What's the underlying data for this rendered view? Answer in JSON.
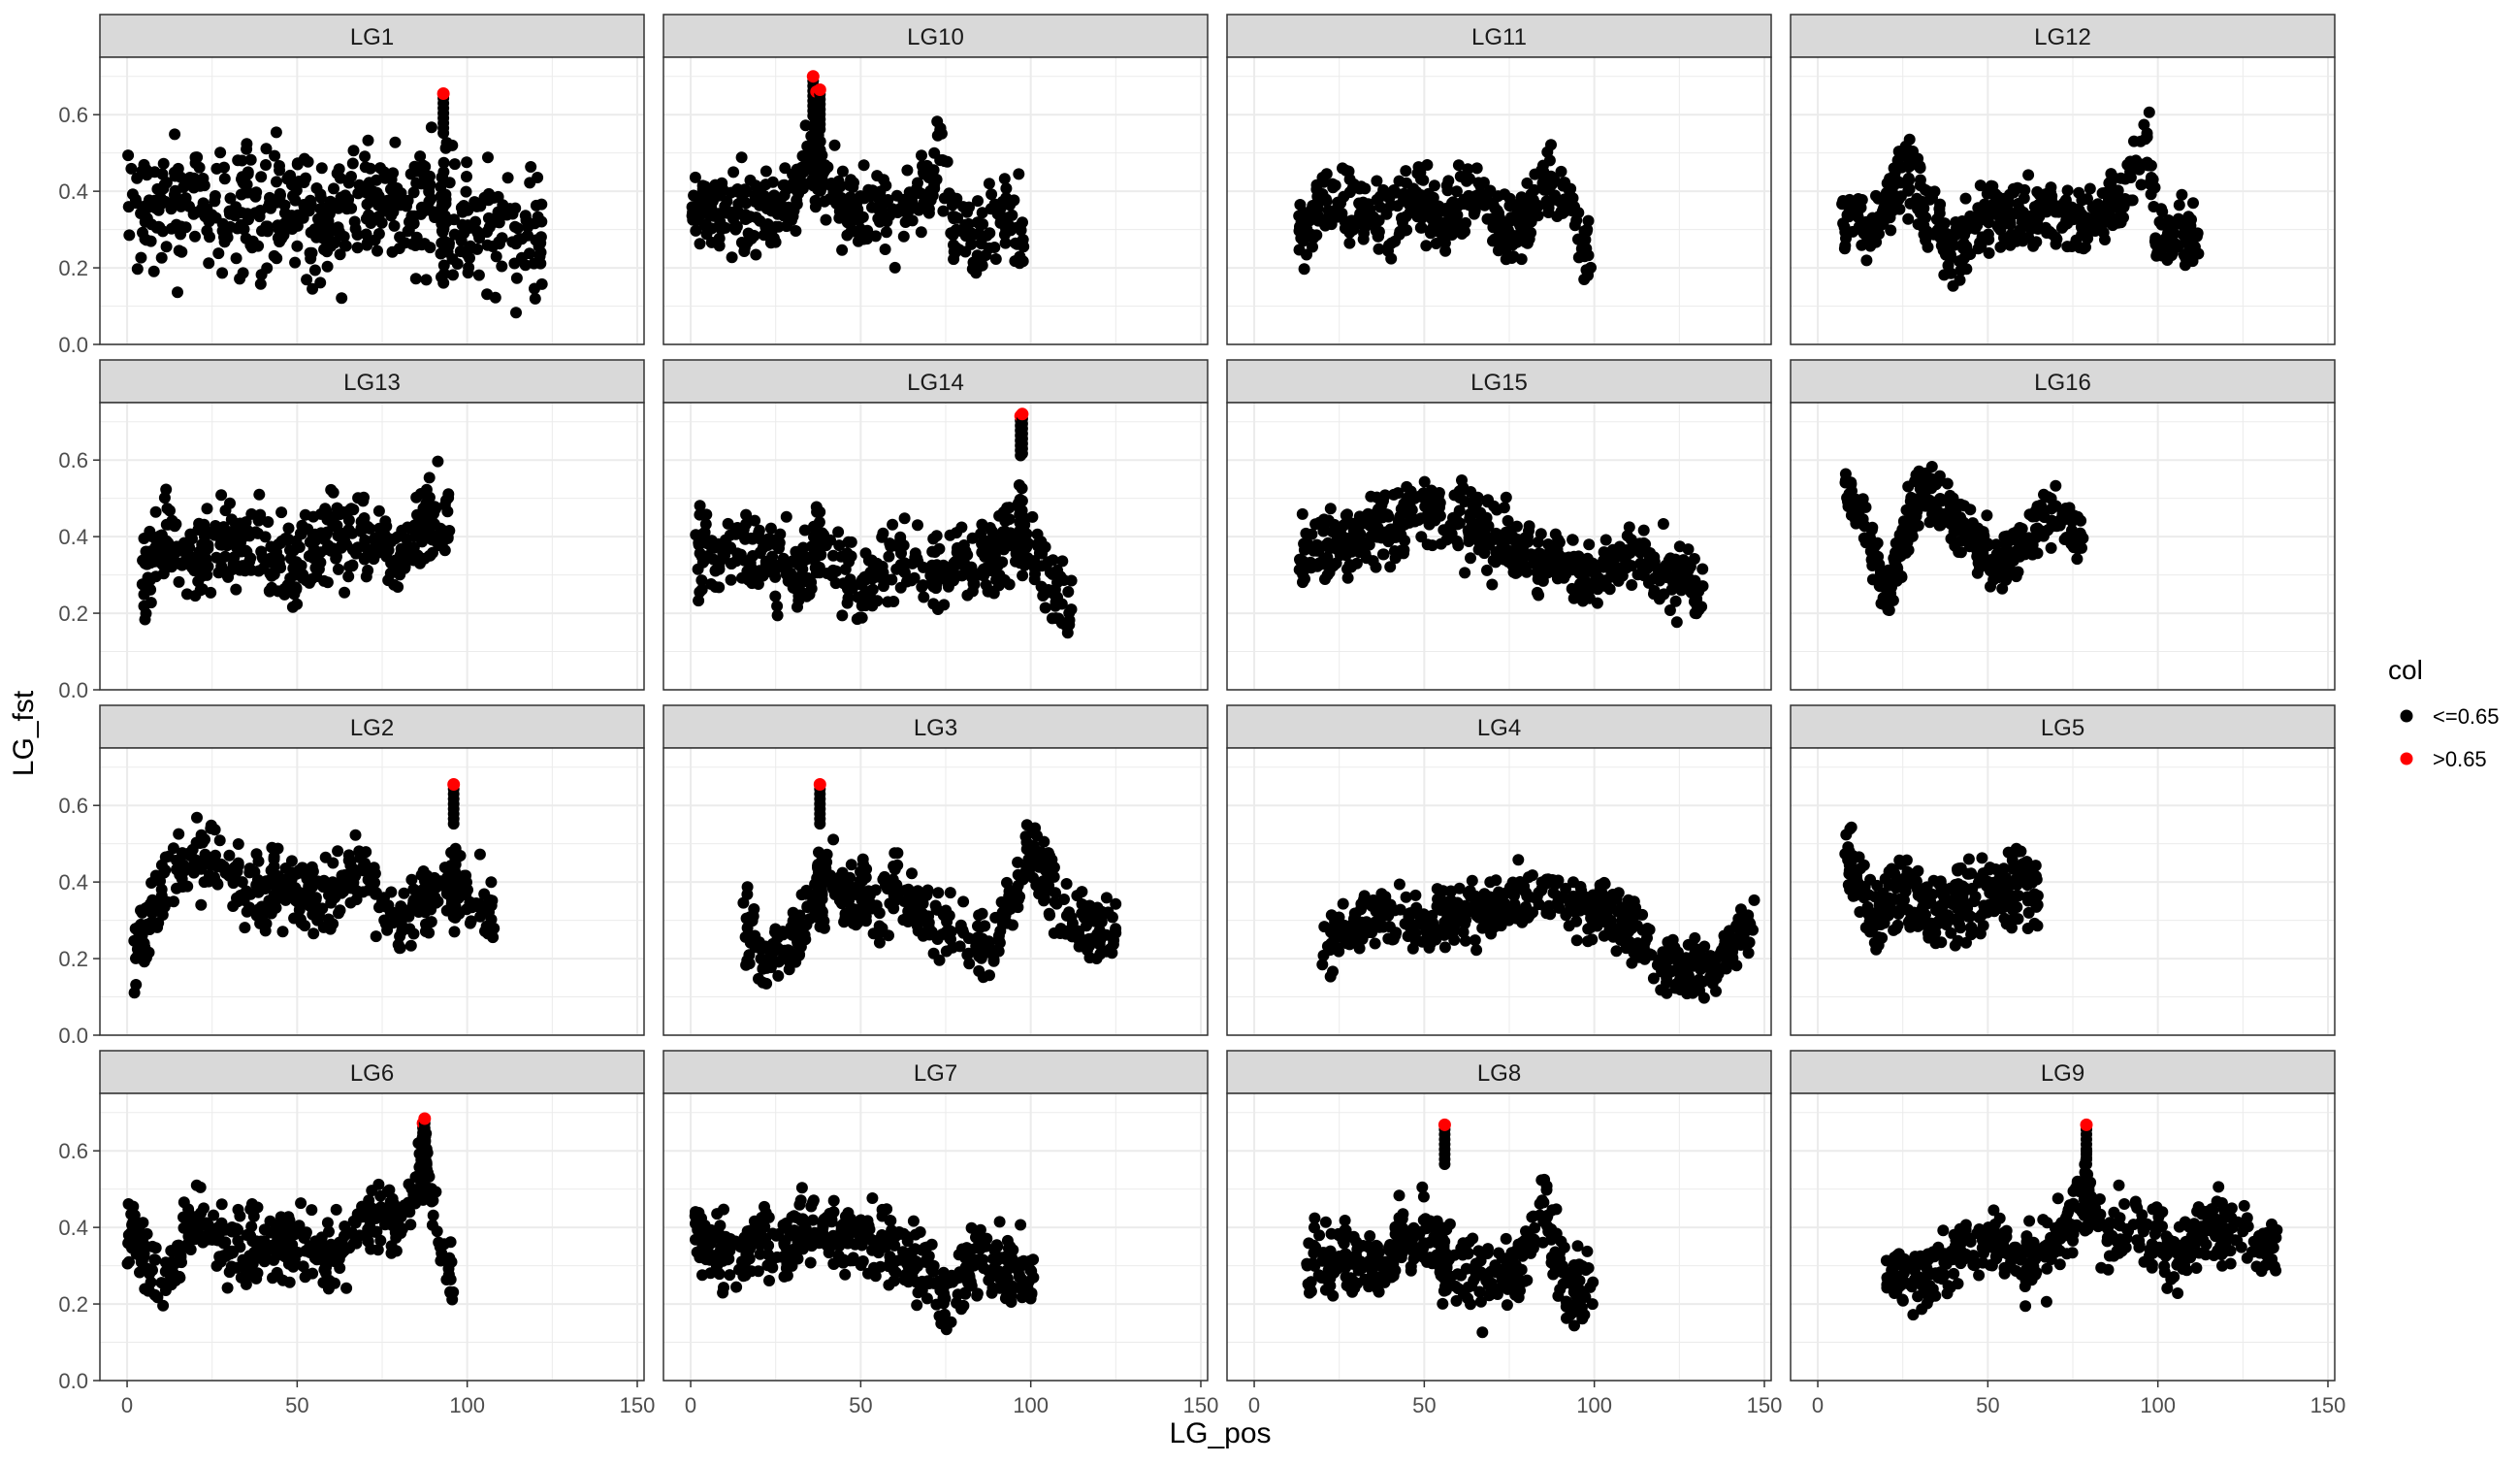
{
  "chart_data": {
    "type": "scatter",
    "xlabel": "LG_pos",
    "ylabel": "LG_fst",
    "xlim": [
      -8,
      152
    ],
    "ylim": [
      0.0,
      0.75
    ],
    "x_ticks": [
      0,
      50,
      100,
      150
    ],
    "y_ticks": [
      0.0,
      0.2,
      0.4,
      0.6
    ],
    "y_tick_labels": [
      "0.0",
      "0.2",
      "0.4",
      "0.6"
    ],
    "grid": true,
    "facet": "wrap 4x4, shared axes",
    "legend": {
      "title": "col",
      "placement": "right",
      "entries": [
        {
          "label": "<=0.65",
          "color": "#000000"
        },
        {
          "label": ">0.65",
          "color": "#ff0000"
        }
      ]
    },
    "panels": [
      {
        "name": "LG1",
        "x_range": [
          0,
          122
        ],
        "profile": [
          [
            0,
            0.4
          ],
          [
            10,
            0.37
          ],
          [
            20,
            0.36
          ],
          [
            30,
            0.34
          ],
          [
            40,
            0.36
          ],
          [
            50,
            0.35
          ],
          [
            60,
            0.32
          ],
          [
            70,
            0.36
          ],
          [
            80,
            0.34
          ],
          [
            90,
            0.36
          ],
          [
            100,
            0.33
          ],
          [
            110,
            0.3
          ],
          [
            122,
            0.28
          ]
        ],
        "spread": 0.11,
        "hi": [
          [
            93,
            0.655
          ]
        ]
      },
      {
        "name": "LG10",
        "x_range": [
          0,
          98
        ],
        "profile": [
          [
            0,
            0.38
          ],
          [
            10,
            0.33
          ],
          [
            20,
            0.36
          ],
          [
            30,
            0.37
          ],
          [
            36,
            0.5
          ],
          [
            40,
            0.42
          ],
          [
            50,
            0.33
          ],
          [
            60,
            0.36
          ],
          [
            70,
            0.4
          ],
          [
            73,
            0.5
          ],
          [
            80,
            0.27
          ],
          [
            90,
            0.33
          ],
          [
            98,
            0.3
          ]
        ],
        "spread": 0.07,
        "hi": [
          [
            36,
            0.7
          ],
          [
            37,
            0.66
          ],
          [
            38,
            0.665
          ]
        ]
      },
      {
        "name": "LG11",
        "x_range": [
          13,
          99
        ],
        "profile": [
          [
            13,
            0.3
          ],
          [
            20,
            0.38
          ],
          [
            30,
            0.36
          ],
          [
            40,
            0.3
          ],
          [
            47,
            0.4
          ],
          [
            55,
            0.32
          ],
          [
            65,
            0.4
          ],
          [
            75,
            0.28
          ],
          [
            85,
            0.42
          ],
          [
            92,
            0.38
          ],
          [
            99,
            0.2
          ]
        ],
        "spread": 0.06,
        "hi": []
      },
      {
        "name": "LG12",
        "x_range": [
          7,
          112
        ],
        "profile": [
          [
            7,
            0.34
          ],
          [
            15,
            0.3
          ],
          [
            20,
            0.35
          ],
          [
            25,
            0.48
          ],
          [
            30,
            0.38
          ],
          [
            40,
            0.23
          ],
          [
            50,
            0.34
          ],
          [
            60,
            0.33
          ],
          [
            70,
            0.34
          ],
          [
            80,
            0.32
          ],
          [
            90,
            0.4
          ],
          [
            97,
            0.52
          ],
          [
            100,
            0.28
          ],
          [
            112,
            0.3
          ]
        ],
        "spread": 0.06,
        "hi": []
      },
      {
        "name": "LG13",
        "x_range": [
          4,
          95
        ],
        "profile": [
          [
            4,
            0.28
          ],
          [
            10,
            0.4
          ],
          [
            20,
            0.33
          ],
          [
            30,
            0.4
          ],
          [
            40,
            0.36
          ],
          [
            50,
            0.32
          ],
          [
            60,
            0.4
          ],
          [
            70,
            0.4
          ],
          [
            80,
            0.33
          ],
          [
            88,
            0.44
          ],
          [
            95,
            0.45
          ]
        ],
        "spread": 0.07,
        "hi": []
      },
      {
        "name": "LG14",
        "x_range": [
          1,
          112
        ],
        "profile": [
          [
            1,
            0.34
          ],
          [
            10,
            0.38
          ],
          [
            20,
            0.36
          ],
          [
            30,
            0.3
          ],
          [
            40,
            0.36
          ],
          [
            50,
            0.26
          ],
          [
            60,
            0.34
          ],
          [
            70,
            0.32
          ],
          [
            80,
            0.33
          ],
          [
            90,
            0.35
          ],
          [
            97,
            0.42
          ],
          [
            105,
            0.3
          ],
          [
            112,
            0.2
          ]
        ],
        "spread": 0.07,
        "hi": [
          [
            97,
            0.715
          ],
          [
            97.5,
            0.72
          ]
        ]
      },
      {
        "name": "LG15",
        "x_range": [
          13,
          132
        ],
        "profile": [
          [
            13,
            0.35
          ],
          [
            25,
            0.38
          ],
          [
            35,
            0.42
          ],
          [
            50,
            0.47
          ],
          [
            60,
            0.46
          ],
          [
            70,
            0.4
          ],
          [
            80,
            0.36
          ],
          [
            90,
            0.33
          ],
          [
            100,
            0.3
          ],
          [
            110,
            0.35
          ],
          [
            120,
            0.3
          ],
          [
            132,
            0.25
          ]
        ],
        "spread": 0.06,
        "hi": []
      },
      {
        "name": "LG16",
        "x_range": [
          8,
          78
        ],
        "profile": [
          [
            8,
            0.52
          ],
          [
            15,
            0.4
          ],
          [
            20,
            0.24
          ],
          [
            25,
            0.38
          ],
          [
            30,
            0.52
          ],
          [
            40,
            0.45
          ],
          [
            50,
            0.35
          ],
          [
            55,
            0.33
          ],
          [
            60,
            0.4
          ],
          [
            70,
            0.48
          ],
          [
            78,
            0.4
          ]
        ],
        "spread": 0.05,
        "hi": []
      },
      {
        "name": "LG2",
        "x_range": [
          2,
          108
        ],
        "profile": [
          [
            2,
            0.2
          ],
          [
            10,
            0.38
          ],
          [
            20,
            0.47
          ],
          [
            30,
            0.42
          ],
          [
            40,
            0.36
          ],
          [
            50,
            0.38
          ],
          [
            60,
            0.36
          ],
          [
            70,
            0.44
          ],
          [
            78,
            0.3
          ],
          [
            85,
            0.33
          ],
          [
            95,
            0.4
          ],
          [
            100,
            0.38
          ],
          [
            108,
            0.3
          ]
        ],
        "spread": 0.06,
        "hi": [
          [
            96,
            0.655
          ]
        ]
      },
      {
        "name": "LG3",
        "x_range": [
          15,
          125
        ],
        "profile": [
          [
            15,
            0.3
          ],
          [
            20,
            0.22
          ],
          [
            30,
            0.24
          ],
          [
            35,
            0.35
          ],
          [
            40,
            0.4
          ],
          [
            50,
            0.35
          ],
          [
            55,
            0.3
          ],
          [
            60,
            0.4
          ],
          [
            70,
            0.3
          ],
          [
            80,
            0.26
          ],
          [
            90,
            0.24
          ],
          [
            100,
            0.5
          ],
          [
            110,
            0.3
          ],
          [
            125,
            0.27
          ]
        ],
        "spread": 0.06,
        "hi": [
          [
            38,
            0.655
          ]
        ]
      },
      {
        "name": "LG4",
        "x_range": [
          20,
          147
        ],
        "profile": [
          [
            20,
            0.23
          ],
          [
            30,
            0.28
          ],
          [
            40,
            0.32
          ],
          [
            50,
            0.28
          ],
          [
            60,
            0.32
          ],
          [
            70,
            0.34
          ],
          [
            80,
            0.36
          ],
          [
            90,
            0.36
          ],
          [
            100,
            0.33
          ],
          [
            110,
            0.3
          ],
          [
            120,
            0.18
          ],
          [
            130,
            0.17
          ],
          [
            140,
            0.22
          ],
          [
            147,
            0.3
          ]
        ],
        "spread": 0.05,
        "hi": []
      },
      {
        "name": "LG5",
        "x_range": [
          8,
          65
        ],
        "profile": [
          [
            8,
            0.45
          ],
          [
            13,
            0.4
          ],
          [
            17,
            0.3
          ],
          [
            20,
            0.35
          ],
          [
            25,
            0.38
          ],
          [
            30,
            0.35
          ],
          [
            40,
            0.34
          ],
          [
            50,
            0.36
          ],
          [
            60,
            0.4
          ],
          [
            65,
            0.38
          ]
        ],
        "spread": 0.07,
        "hi": []
      },
      {
        "name": "LG6",
        "x_range": [
          0,
          96
        ],
        "profile": [
          [
            0,
            0.4
          ],
          [
            10,
            0.25
          ],
          [
            20,
            0.42
          ],
          [
            30,
            0.35
          ],
          [
            40,
            0.33
          ],
          [
            50,
            0.37
          ],
          [
            60,
            0.3
          ],
          [
            70,
            0.45
          ],
          [
            80,
            0.4
          ],
          [
            88,
            0.58
          ],
          [
            92,
            0.35
          ],
          [
            96,
            0.25
          ]
        ],
        "spread": 0.06,
        "hi": [
          [
            87,
            0.672
          ],
          [
            87.5,
            0.684
          ]
        ]
      },
      {
        "name": "LG7",
        "x_range": [
          0,
          101
        ],
        "profile": [
          [
            0,
            0.4
          ],
          [
            10,
            0.32
          ],
          [
            20,
            0.35
          ],
          [
            28,
            0.36
          ],
          [
            35,
            0.4
          ],
          [
            45,
            0.38
          ],
          [
            55,
            0.35
          ],
          [
            65,
            0.34
          ],
          [
            75,
            0.22
          ],
          [
            85,
            0.33
          ],
          [
            95,
            0.28
          ],
          [
            101,
            0.27
          ]
        ],
        "spread": 0.06,
        "hi": []
      },
      {
        "name": "LG8",
        "x_range": [
          15,
          100
        ],
        "profile": [
          [
            15,
            0.32
          ],
          [
            25,
            0.33
          ],
          [
            35,
            0.32
          ],
          [
            42,
            0.36
          ],
          [
            50,
            0.38
          ],
          [
            56,
            0.32
          ],
          [
            60,
            0.3
          ],
          [
            70,
            0.28
          ],
          [
            80,
            0.3
          ],
          [
            85,
            0.45
          ],
          [
            92,
            0.24
          ],
          [
            100,
            0.24
          ]
        ],
        "spread": 0.07,
        "hi": [
          [
            56,
            0.668
          ]
        ]
      },
      {
        "name": "LG9",
        "x_range": [
          20,
          135
        ],
        "profile": [
          [
            20,
            0.28
          ],
          [
            30,
            0.25
          ],
          [
            40,
            0.33
          ],
          [
            50,
            0.38
          ],
          [
            55,
            0.35
          ],
          [
            60,
            0.32
          ],
          [
            70,
            0.36
          ],
          [
            79,
            0.48
          ],
          [
            85,
            0.38
          ],
          [
            95,
            0.4
          ],
          [
            105,
            0.32
          ],
          [
            115,
            0.4
          ],
          [
            125,
            0.38
          ],
          [
            135,
            0.33
          ]
        ],
        "spread": 0.06,
        "hi": [
          [
            79,
            0.668
          ]
        ]
      }
    ]
  }
}
